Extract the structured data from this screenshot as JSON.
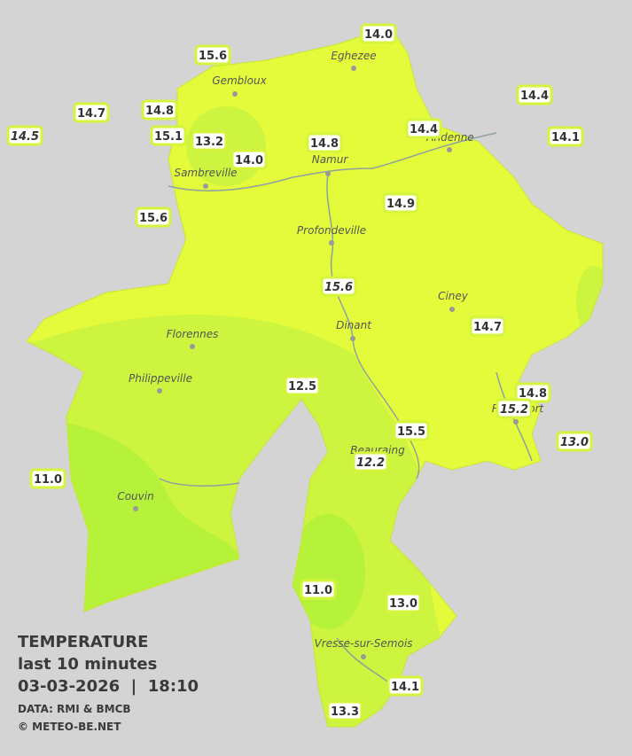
{
  "map": {
    "stations": [
      {
        "label": "14.0"
      },
      {
        "label": "15.6"
      },
      {
        "label": "14.4"
      },
      {
        "label": "14.7"
      },
      {
        "label": "14.8"
      },
      {
        "label": "14.5",
        "italic": true
      },
      {
        "label": "15.1"
      },
      {
        "label": "13.2"
      },
      {
        "label": "14.4"
      },
      {
        "label": "14.1"
      },
      {
        "label": "14.8"
      },
      {
        "label": "14.0"
      },
      {
        "label": "14.9"
      },
      {
        "label": "15.6"
      },
      {
        "label": "15.6",
        "italic": true
      },
      {
        "label": "14.7"
      },
      {
        "label": "12.5"
      },
      {
        "label": "14.8"
      },
      {
        "label": "15.2",
        "italic": true
      },
      {
        "label": "15.5"
      },
      {
        "label": "13.0",
        "italic": true
      },
      {
        "label": "12.2",
        "italic": true
      },
      {
        "label": "11.0"
      },
      {
        "label": "11.0"
      },
      {
        "label": "13.0"
      },
      {
        "label": "14.1"
      },
      {
        "label": "13.3"
      }
    ],
    "cities": [
      "Eghezee",
      "Gembloux",
      "Andenne",
      "Namur",
      "Sambreville",
      "Profondeville",
      "Ciney",
      "Dinant",
      "Florennes",
      "Philippeville",
      "Rochefort",
      "Beauraing",
      "Couvin",
      "Vresse-sur-Semois"
    ]
  },
  "legend": {
    "title": "TEMPERATURE",
    "subtitle": "last 10 minutes",
    "datetime": "03-03-2026  |  18:10",
    "source": "DATA: RMI & BMCB",
    "copyright": "© METEO-BE.NET"
  }
}
